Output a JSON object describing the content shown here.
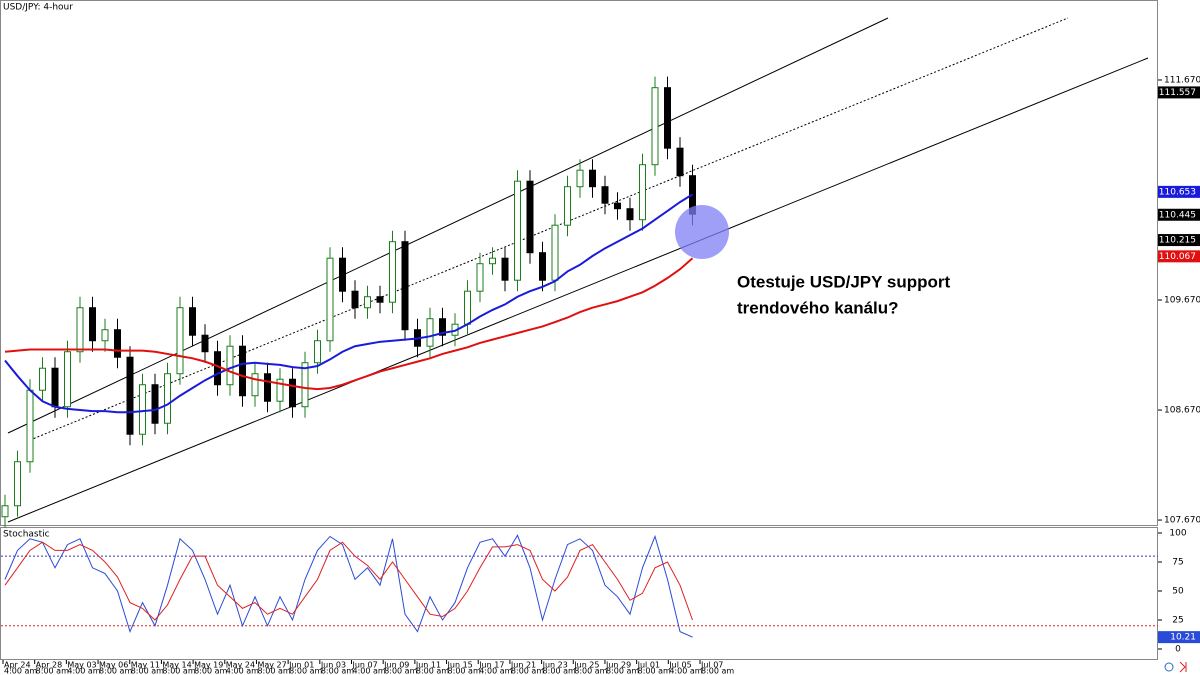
{
  "chart_data": {
    "type": "candlestick",
    "title": "USD/JPY: 4-hour",
    "annotation": [
      "Otestuje USD/JPY support",
      "trendového kanálu?"
    ],
    "up_color": "#1b7d1b",
    "down_color": "#000000",
    "ylim": [
      107.625,
      112.397
    ],
    "yticks": [
      {
        "value": 107.67,
        "label": "107.670"
      },
      {
        "value": 108.67,
        "label": "108.670"
      },
      {
        "value": 109.67,
        "label": "109.670"
      },
      {
        "value": 111.67,
        "label": "111.670"
      }
    ],
    "x_labels": [
      {
        "date": "Apr 24",
        "time": "4:00 am"
      },
      {
        "date": "Apr 28",
        "time": "8:00 am"
      },
      {
        "date": "May 03",
        "time": "4:00 am"
      },
      {
        "date": "May 06",
        "time": "8:00 am"
      },
      {
        "date": "May 11",
        "time": "8:00 am"
      },
      {
        "date": "May 14",
        "time": "8:00 am"
      },
      {
        "date": "May 19",
        "time": "8:00 am"
      },
      {
        "date": "May 24",
        "time": "4:00 am"
      },
      {
        "date": "May 27",
        "time": "8:00 am"
      },
      {
        "date": "Jun 01",
        "time": "8:00 am"
      },
      {
        "date": "Jun 03",
        "time": "8:00 am"
      },
      {
        "date": "Jun 07",
        "time": "4:00 am"
      },
      {
        "date": "Jun 09",
        "time": "8:00 am"
      },
      {
        "date": "Jun 11",
        "time": "8:00 am"
      },
      {
        "date": "Jun 15",
        "time": "8:00 am"
      },
      {
        "date": "Jun 17",
        "time": "4:00 am"
      },
      {
        "date": "Jun 21",
        "time": "8:00 am"
      },
      {
        "date": "Jun 23",
        "time": "8:00 am"
      },
      {
        "date": "Jun 25",
        "time": "8:00 am"
      },
      {
        "date": "Jun 29",
        "time": "8:00 am"
      },
      {
        "date": "Jul 01",
        "time": "8:00 am"
      },
      {
        "date": "Jul 05",
        "time": "4:00 am"
      },
      {
        "date": "Jul 07",
        "time": "8:00 am"
      }
    ],
    "candles": [
      [
        107.7,
        107.9,
        107.6,
        107.8
      ],
      [
        107.8,
        108.3,
        107.7,
        108.2
      ],
      [
        108.2,
        108.95,
        108.1,
        108.85
      ],
      [
        108.85,
        109.15,
        108.75,
        109.05
      ],
      [
        109.05,
        109.15,
        108.6,
        108.7
      ],
      [
        108.7,
        109.3,
        108.6,
        109.2
      ],
      [
        109.2,
        109.7,
        109.1,
        109.6
      ],
      [
        109.6,
        109.7,
        109.2,
        109.3
      ],
      [
        109.3,
        109.5,
        109.2,
        109.4
      ],
      [
        109.4,
        109.5,
        109.05,
        109.15
      ],
      [
        109.15,
        109.25,
        108.35,
        108.45
      ],
      [
        108.45,
        109.0,
        108.35,
        108.9
      ],
      [
        108.9,
        109.0,
        108.45,
        108.55
      ],
      [
        108.55,
        109.1,
        108.45,
        109.0
      ],
      [
        109.0,
        109.7,
        108.9,
        109.6
      ],
      [
        109.6,
        109.7,
        109.25,
        109.35
      ],
      [
        109.35,
        109.45,
        109.1,
        109.2
      ],
      [
        109.2,
        109.3,
        108.8,
        108.9
      ],
      [
        108.9,
        109.35,
        108.8,
        109.25
      ],
      [
        109.25,
        109.35,
        108.7,
        108.8
      ],
      [
        108.8,
        109.1,
        108.7,
        109.0
      ],
      [
        109.0,
        109.1,
        108.65,
        108.75
      ],
      [
        108.75,
        109.05,
        108.65,
        108.95
      ],
      [
        108.95,
        109.05,
        108.6,
        108.7
      ],
      [
        108.7,
        109.2,
        108.6,
        109.1
      ],
      [
        109.1,
        109.4,
        109.0,
        109.3
      ],
      [
        109.3,
        110.15,
        109.2,
        110.05
      ],
      [
        110.05,
        110.15,
        109.65,
        109.75
      ],
      [
        109.75,
        109.85,
        109.5,
        109.6
      ],
      [
        109.6,
        109.8,
        109.5,
        109.7
      ],
      [
        109.7,
        109.8,
        109.55,
        109.65
      ],
      [
        109.65,
        110.3,
        109.55,
        110.2
      ],
      [
        110.2,
        110.3,
        109.3,
        109.4
      ],
      [
        109.4,
        109.5,
        109.15,
        109.25
      ],
      [
        109.25,
        109.6,
        109.15,
        109.5
      ],
      [
        109.5,
        109.6,
        109.25,
        109.35
      ],
      [
        109.35,
        109.55,
        109.25,
        109.45
      ],
      [
        109.45,
        109.85,
        109.35,
        109.75
      ],
      [
        109.75,
        110.1,
        109.65,
        110.0
      ],
      [
        110.0,
        110.15,
        109.9,
        110.05
      ],
      [
        110.05,
        110.15,
        109.75,
        109.85
      ],
      [
        109.85,
        110.85,
        109.75,
        110.75
      ],
      [
        110.75,
        110.85,
        110.0,
        110.1
      ],
      [
        110.1,
        110.2,
        109.75,
        109.85
      ],
      [
        109.85,
        110.45,
        109.75,
        110.35
      ],
      [
        110.35,
        110.8,
        110.25,
        110.7
      ],
      [
        110.7,
        110.95,
        110.6,
        110.85
      ],
      [
        110.85,
        110.95,
        110.6,
        110.7
      ],
      [
        110.7,
        110.8,
        110.45,
        110.55
      ],
      [
        110.55,
        110.65,
        110.4,
        110.5
      ],
      [
        110.5,
        110.6,
        110.3,
        110.4
      ],
      [
        110.4,
        111.0,
        110.3,
        110.9
      ],
      [
        110.9,
        111.7,
        110.8,
        111.6
      ],
      [
        111.6,
        111.7,
        110.95,
        111.05
      ],
      [
        111.05,
        111.15,
        110.7,
        110.8
      ],
      [
        110.8,
        110.9,
        110.35,
        110.45
      ]
    ],
    "series": [
      {
        "color": "#1a1adb",
        "values": [
          109.12,
          108.98,
          108.85,
          108.75,
          108.7,
          108.68,
          108.67,
          108.66,
          108.66,
          108.65,
          108.65,
          108.66,
          108.67,
          108.72,
          108.8,
          108.87,
          108.94,
          109.0,
          109.05,
          109.09,
          109.1,
          109.09,
          109.08,
          109.06,
          109.05,
          109.07,
          109.13,
          109.2,
          109.25,
          109.27,
          109.29,
          109.3,
          109.31,
          109.32,
          109.34,
          109.37,
          109.39,
          109.45,
          109.52,
          109.58,
          109.63,
          109.7,
          109.75,
          109.79,
          109.84,
          109.93,
          109.99,
          110.07,
          110.14,
          110.2,
          110.26,
          110.32,
          110.4,
          110.48,
          110.56,
          110.63
        ]
      },
      {
        "color": "#e01010",
        "values": [
          109.2,
          109.21,
          109.22,
          109.22,
          109.22,
          109.22,
          109.22,
          109.22,
          109.22,
          109.21,
          109.21,
          109.21,
          109.2,
          109.18,
          109.16,
          109.14,
          109.11,
          109.07,
          109.02,
          108.98,
          108.95,
          108.93,
          108.91,
          108.89,
          108.87,
          108.86,
          108.87,
          108.9,
          108.94,
          108.98,
          109.02,
          109.05,
          109.08,
          109.11,
          109.14,
          109.18,
          109.21,
          109.24,
          109.28,
          109.31,
          109.34,
          109.37,
          109.4,
          109.43,
          109.47,
          109.51,
          109.56,
          109.6,
          109.63,
          109.66,
          109.7,
          109.74,
          109.8,
          109.87,
          109.95,
          110.05
        ]
      }
    ],
    "price_markers": [
      {
        "value": 111.557,
        "color": "#000000"
      },
      {
        "value": 110.653,
        "color": "#1a1adb"
      },
      {
        "value": 110.445,
        "color": "#000000"
      },
      {
        "value": 110.215,
        "color": "#000000"
      },
      {
        "value": 110.067,
        "color": "#e01010"
      }
    ],
    "oscillator": {
      "title": "Stochastic",
      "ylim": [
        -9.5,
        104.3
      ],
      "yticks": [
        0,
        25,
        50,
        75,
        100
      ],
      "levels": [
        {
          "value": 80,
          "color": "#3333cc"
        },
        {
          "value": 20,
          "color": "#dd2222"
        }
      ],
      "series": [
        {
          "color": "#2a4bd7",
          "values": [
            60,
            85,
            95,
            92,
            70,
            90,
            95,
            70,
            65,
            50,
            15,
            40,
            20,
            55,
            95,
            85,
            60,
            30,
            55,
            20,
            45,
            20,
            45,
            25,
            60,
            85,
            97,
            90,
            60,
            70,
            55,
            95,
            30,
            15,
            45,
            25,
            40,
            70,
            92,
            95,
            80,
            98,
            70,
            25,
            60,
            90,
            95,
            85,
            55,
            45,
            30,
            70,
            97,
            60,
            15,
            10.21
          ]
        },
        {
          "color": "#e02020",
          "values": [
            55,
            70,
            85,
            92,
            85,
            85,
            90,
            85,
            75,
            62,
            40,
            35,
            25,
            38,
            60,
            80,
            80,
            55,
            45,
            35,
            40,
            30,
            35,
            30,
            45,
            60,
            85,
            92,
            80,
            72,
            60,
            75,
            60,
            45,
            30,
            28,
            35,
            50,
            70,
            88,
            88,
            90,
            85,
            60,
            50,
            62,
            85,
            90,
            75,
            60,
            42,
            48,
            70,
            75,
            55,
            25
          ]
        }
      ]
    }
  }
}
